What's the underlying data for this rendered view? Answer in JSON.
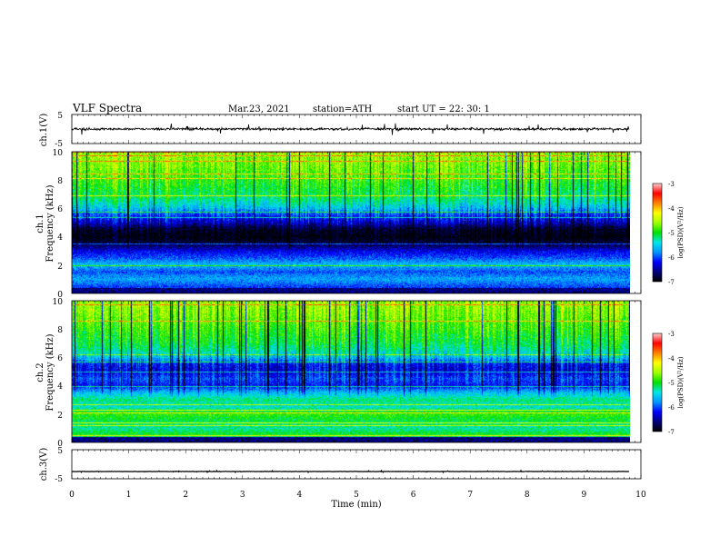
{
  "header": {
    "title": "VLF  Spectra",
    "date": "Mar.23, 2021",
    "station": "station=ATH",
    "start": "start  UT  =   22: 30: 1"
  },
  "colors": {
    "spectrogram_scale": [
      "#000000",
      "#00007a",
      "#0000ff",
      "#0096ff",
      "#00e6e6",
      "#00e000",
      "#a0ff00",
      "#ffff00",
      "#ff8000",
      "#ff0000",
      "#ffd0d0"
    ],
    "trace": "#000000"
  },
  "chart_data": [
    {
      "type": "line",
      "name": "ch1-waveform",
      "ylabel": "ch.1(V)",
      "ylim": [
        -5,
        5
      ],
      "yticks": [
        "5",
        "-5"
      ],
      "xlim": [
        0,
        10
      ],
      "series": [
        {
          "level_v": 0,
          "noise_amplitude_v": 1.2,
          "x_end": 9.8
        }
      ]
    },
    {
      "type": "heatmap",
      "name": "ch1-spectrogram",
      "ylabel": "ch.1\nFrequency (kHz)",
      "ylim": [
        0,
        10
      ],
      "yticks": [
        "10",
        "8",
        "6",
        "4",
        "2",
        "0"
      ],
      "xlim": [
        0,
        10
      ],
      "x_end": 9.8,
      "colorbar": {
        "label": "log(PSD)(V²/Hz)",
        "range": [
          -7,
          -3
        ],
        "ticks": [
          "-3",
          "-4",
          "-5",
          "-6",
          "-7"
        ]
      },
      "frequency_profile_logpsd": [
        [
          0.0,
          -6.3
        ],
        [
          0.5,
          -6.0
        ],
        [
          1.0,
          -5.7
        ],
        [
          1.5,
          -6.0
        ],
        [
          2.0,
          -5.6
        ],
        [
          2.5,
          -6.0
        ],
        [
          3.0,
          -6.3
        ],
        [
          3.5,
          -6.8
        ],
        [
          4.0,
          -7.0
        ],
        [
          4.5,
          -6.9
        ],
        [
          5.0,
          -6.4
        ],
        [
          5.5,
          -6.1
        ],
        [
          6.0,
          -5.6
        ],
        [
          6.5,
          -5.3
        ],
        [
          7.0,
          -5.1
        ],
        [
          8.0,
          -4.9
        ],
        [
          9.0,
          -4.7
        ],
        [
          10.0,
          -4.6
        ]
      ]
    },
    {
      "type": "heatmap",
      "name": "ch2-spectrogram",
      "ylabel": "ch.2\nFrequency (kHz)",
      "ylim": [
        0,
        10
      ],
      "yticks": [
        "10",
        "8",
        "6",
        "4",
        "2",
        "0"
      ],
      "xlim": [
        0,
        10
      ],
      "x_end": 9.8,
      "colorbar": {
        "label": "log(PSD)(V²/Hz)",
        "range": [
          -7,
          -3
        ],
        "ticks": [
          "-3",
          "-4",
          "-5",
          "-6",
          "-7"
        ]
      },
      "frequency_profile_logpsd": [
        [
          0.0,
          -5.8
        ],
        [
          0.5,
          -5.0
        ],
        [
          1.0,
          -5.3
        ],
        [
          1.5,
          -5.1
        ],
        [
          2.0,
          -4.9
        ],
        [
          2.5,
          -5.4
        ],
        [
          3.0,
          -5.2
        ],
        [
          3.5,
          -5.6
        ],
        [
          4.0,
          -6.2
        ],
        [
          4.5,
          -6.0
        ],
        [
          5.0,
          -6.3
        ],
        [
          5.5,
          -6.2
        ],
        [
          6.0,
          -5.6
        ],
        [
          6.5,
          -5.3
        ],
        [
          7.0,
          -5.1
        ],
        [
          8.0,
          -4.9
        ],
        [
          9.0,
          -4.7
        ],
        [
          10.0,
          -4.6
        ]
      ]
    },
    {
      "type": "line",
      "name": "ch3-waveform",
      "ylabel": "ch.3(V)",
      "ylim": [
        -5,
        5
      ],
      "yticks": [
        "5",
        "-5"
      ],
      "xlim": [
        0,
        10
      ],
      "series": [
        {
          "level_v": -2.5,
          "noise_amplitude_v": 0.2,
          "x_end": 9.8
        }
      ]
    }
  ],
  "x_axis": {
    "label": "Time  (min)",
    "ticks": [
      "0",
      "1",
      "2",
      "3",
      "4",
      "5",
      "6",
      "7",
      "8",
      "9",
      "10"
    ]
  }
}
